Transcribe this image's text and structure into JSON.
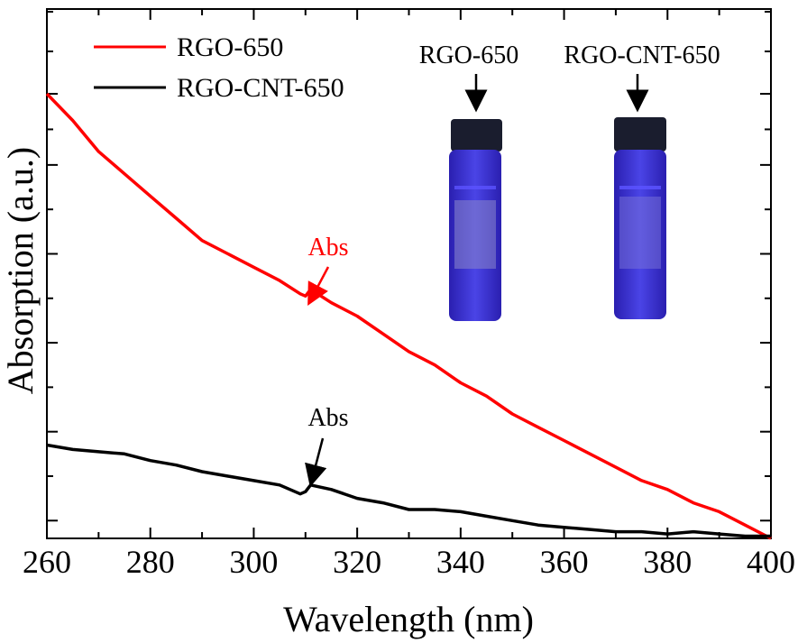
{
  "chart_data": {
    "type": "line",
    "title": "",
    "xlabel": "Wavelength (nm)",
    "ylabel": "Absorption (a.u.)",
    "xlim": [
      260,
      400
    ],
    "ylim": [
      0,
      1
    ],
    "xticks": [
      260,
      280,
      300,
      320,
      340,
      360,
      380,
      400
    ],
    "xtick_labels": [
      "260",
      "280",
      "300",
      "320",
      "340",
      "360",
      "380",
      "400"
    ],
    "yticks_shown_labels": false,
    "legend_position": "top-left",
    "series": [
      {
        "name": "RGO-650",
        "color": "#ff0000",
        "x": [
          260,
          265,
          270,
          275,
          280,
          285,
          290,
          295,
          300,
          305,
          309,
          310,
          311,
          315,
          320,
          325,
          330,
          335,
          340,
          345,
          350,
          355,
          360,
          365,
          370,
          375,
          380,
          385,
          390,
          395,
          400
        ],
        "y": [
          1.0,
          0.94,
          0.87,
          0.82,
          0.77,
          0.72,
          0.67,
          0.64,
          0.61,
          0.58,
          0.55,
          0.545,
          0.56,
          0.53,
          0.5,
          0.46,
          0.42,
          0.39,
          0.35,
          0.32,
          0.28,
          0.25,
          0.22,
          0.19,
          0.16,
          0.13,
          0.11,
          0.08,
          0.06,
          0.03,
          0.0
        ]
      },
      {
        "name": "RGO-CNT-650",
        "color": "#000000",
        "x": [
          260,
          265,
          270,
          275,
          280,
          285,
          290,
          295,
          300,
          305,
          309,
          310,
          311,
          315,
          320,
          325,
          330,
          335,
          340,
          345,
          350,
          355,
          360,
          365,
          370,
          375,
          380,
          385,
          390,
          395,
          400
        ],
        "y": [
          0.21,
          0.2,
          0.195,
          0.19,
          0.175,
          0.165,
          0.15,
          0.14,
          0.13,
          0.12,
          0.1,
          0.105,
          0.12,
          0.11,
          0.09,
          0.08,
          0.065,
          0.065,
          0.06,
          0.05,
          0.04,
          0.03,
          0.025,
          0.02,
          0.015,
          0.015,
          0.01,
          0.015,
          0.01,
          0.005,
          0.005
        ]
      }
    ],
    "annotations": [
      {
        "text": "Abs",
        "color": "#ff0000",
        "series": "RGO-650",
        "x": 310
      },
      {
        "text": "Abs",
        "color": "#000000",
        "series": "RGO-CNT-650",
        "x": 310
      }
    ]
  },
  "inset": {
    "vials": [
      {
        "label": "RGO-650"
      },
      {
        "label": "RGO-CNT-650"
      }
    ]
  }
}
